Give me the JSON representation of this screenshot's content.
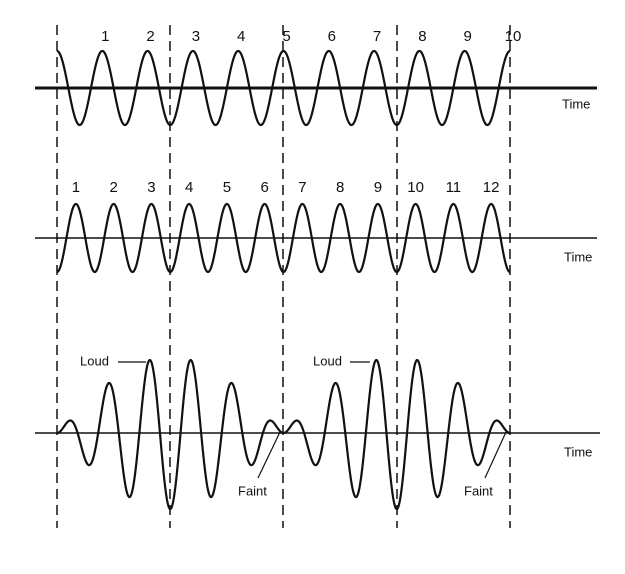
{
  "waves": [
    {
      "peak_labels": [
        "1",
        "2",
        "3",
        "4",
        "5",
        "6",
        "7",
        "8",
        "9",
        "10"
      ],
      "axis_label": "Time"
    },
    {
      "peak_labels": [
        "1",
        "2",
        "3",
        "4",
        "5",
        "6",
        "7",
        "8",
        "9",
        "10",
        "11",
        "12"
      ],
      "axis_label": "Time"
    }
  ],
  "sum": {
    "axis_label": "Time",
    "loud_labels": [
      "Loud",
      "Loud"
    ],
    "faint_labels": [
      "Faint",
      "Faint"
    ]
  }
}
